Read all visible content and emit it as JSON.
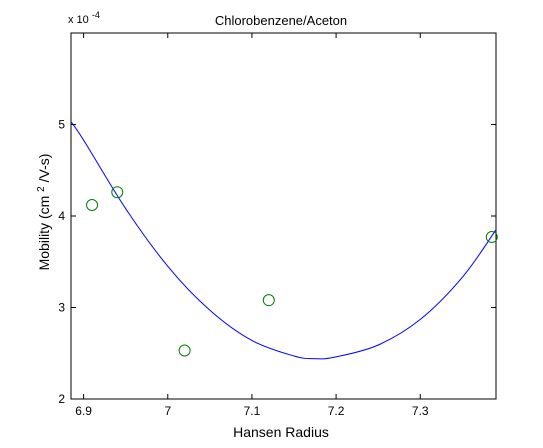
{
  "colors": {
    "background": "#ffffff",
    "axes": "#000000",
    "fit_line": "#0000ff",
    "markers": "#007f00"
  },
  "chart_data": {
    "type": "scatter",
    "title": "Chlorobenzene/Aceton",
    "xlabel": "Hansen Radius",
    "ylabel_parts": [
      "Mobility (cm",
      "2",
      "/V-s)"
    ],
    "y_multiplier": {
      "base": "x 10",
      "exponent": "-4"
    },
    "xlim": [
      6.885,
      7.39
    ],
    "ylim": [
      2,
      6
    ],
    "xticks": [
      6.9,
      7,
      7.1,
      7.2,
      7.3
    ],
    "xtick_labels": [
      "6.9",
      "7",
      "7.1",
      "7.2",
      "7.3"
    ],
    "yticks": [
      2,
      3,
      4,
      5
    ],
    "ytick_labels": [
      "2",
      "3",
      "4",
      "5"
    ],
    "grid": false,
    "series": [
      {
        "kind": "markers",
        "marker": "open-circle",
        "x": [
          6.91,
          6.94,
          7.02,
          7.12,
          7.385
        ],
        "y": [
          4.12,
          4.26,
          2.53,
          3.08,
          3.77
        ]
      },
      {
        "kind": "fit-curve",
        "x": [
          6.885,
          6.9,
          6.95,
          7.0,
          7.05,
          7.1,
          7.15,
          7.175,
          7.2,
          7.25,
          7.3,
          7.35,
          7.39
        ],
        "y": [
          5.03,
          4.83,
          4.08,
          3.45,
          2.97,
          2.64,
          2.47,
          2.44,
          2.46,
          2.59,
          2.87,
          3.33,
          3.85
        ]
      }
    ]
  }
}
